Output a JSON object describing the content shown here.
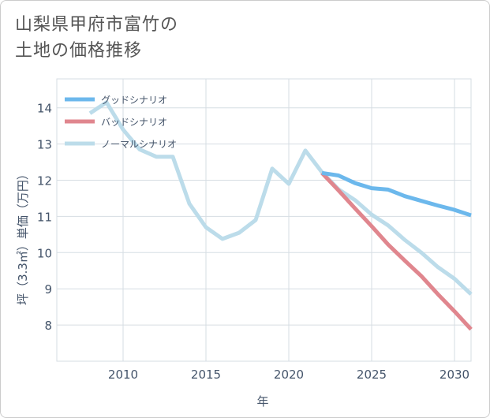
{
  "title_lines": [
    "山梨県甲府市富竹の",
    "土地の価格推移"
  ],
  "chart_data": {
    "type": "line",
    "xlabel": "年",
    "ylabel": "坪（3.3㎡）単価（万円）",
    "xlim": [
      2006,
      2031
    ],
    "ylim": [
      7,
      14.8
    ],
    "x_ticks": [
      2010,
      2015,
      2020,
      2025,
      2030
    ],
    "y_ticks": [
      8,
      9,
      10,
      11,
      12,
      13,
      14
    ],
    "grid": true,
    "legend_position": "top-left",
    "series": [
      {
        "name": "グッドシナリオ",
        "color": "#6cb8ec",
        "x": [
          2022,
          2023,
          2024,
          2025,
          2026,
          2027,
          2028,
          2029,
          2030,
          2031
        ],
        "values": [
          12.2,
          12.13,
          11.92,
          11.78,
          11.74,
          11.56,
          11.43,
          11.3,
          11.18,
          11.03
        ]
      },
      {
        "name": "バッドシナリオ",
        "color": "#e0868e",
        "x": [
          2022,
          2023,
          2024,
          2025,
          2026,
          2027,
          2028,
          2029,
          2030,
          2031
        ],
        "values": [
          12.2,
          11.72,
          11.22,
          10.73,
          10.22,
          9.78,
          9.35,
          8.85,
          8.38,
          7.88
        ]
      },
      {
        "name": "ノーマルシナリオ",
        "color": "#bcdcea",
        "x": [
          2008,
          2009,
          2010,
          2011,
          2012,
          2013,
          2014,
          2015,
          2016,
          2017,
          2018,
          2019,
          2020,
          2021,
          2022,
          2023,
          2024,
          2025,
          2026,
          2027,
          2028,
          2029,
          2030,
          2031
        ],
        "values": [
          13.85,
          14.15,
          13.4,
          12.85,
          12.65,
          12.65,
          11.35,
          10.7,
          10.38,
          10.55,
          10.9,
          12.32,
          11.9,
          12.82,
          12.22,
          11.75,
          11.45,
          11.05,
          10.75,
          10.35,
          10.0,
          9.6,
          9.28,
          8.85
        ]
      }
    ]
  }
}
